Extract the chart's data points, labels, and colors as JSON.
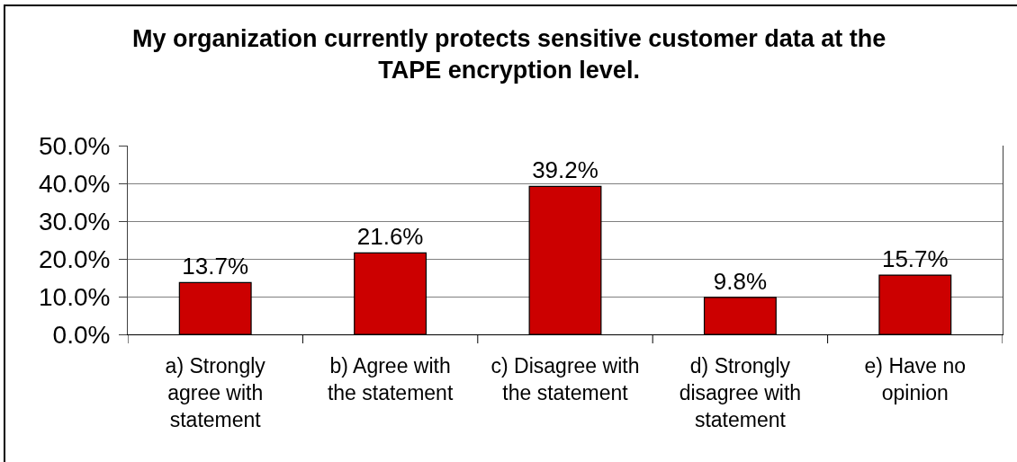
{
  "chart_data": {
    "type": "bar",
    "title": "My organization currently protects sensitive customer data at the TAPE encryption level.",
    "categories": [
      "a) Strongly agree with statement",
      "b) Agree with the statement",
      "c) Disagree with the statement",
      "d) Strongly disagree with statement",
      "e) Have no opinion"
    ],
    "values": [
      13.7,
      21.6,
      39.2,
      9.8,
      15.7
    ],
    "value_labels": [
      "13.7%",
      "21.6%",
      "39.2%",
      "9.8%",
      "15.7%"
    ],
    "color": "#cc0000",
    "ylim": [
      0,
      50
    ],
    "yticks": [
      {
        "value": 0,
        "label": "0.0%"
      },
      {
        "value": 10,
        "label": "10.0%"
      },
      {
        "value": 20,
        "label": "20.0%"
      },
      {
        "value": 30,
        "label": "30.0%"
      },
      {
        "value": 40,
        "label": "40.0%"
      },
      {
        "value": 50,
        "label": "50.0%"
      }
    ],
    "grid": "y"
  }
}
